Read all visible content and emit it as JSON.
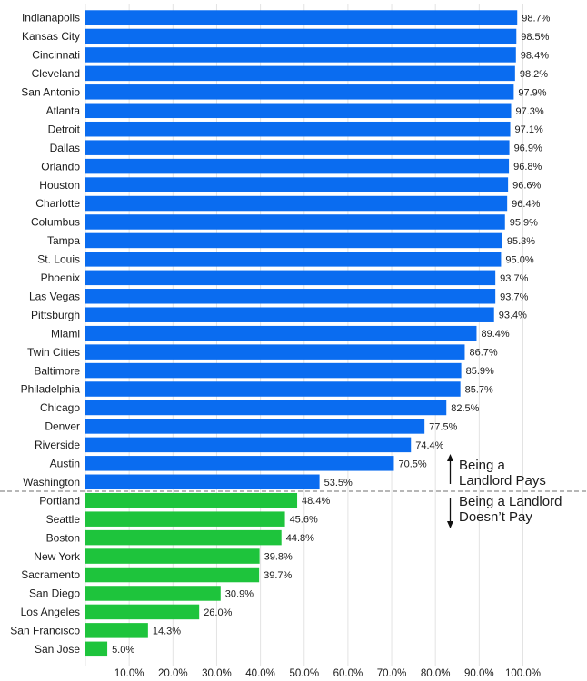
{
  "chart_data": {
    "type": "bar",
    "orientation": "horizontal",
    "categories": [
      "Indianapolis",
      "Kansas City",
      "Cincinnati",
      "Cleveland",
      "San Antonio",
      "Atlanta",
      "Detroit",
      "Dallas",
      "Orlando",
      "Houston",
      "Charlotte",
      "Columbus",
      "Tampa",
      "St. Louis",
      "Phoenix",
      "Las Vegas",
      "Pittsburgh",
      "Miami",
      "Twin Cities",
      "Baltimore",
      "Philadelphia",
      "Chicago",
      "Denver",
      "Riverside",
      "Austin",
      "Washington",
      "Portland",
      "Seattle",
      "Boston",
      "New York",
      "Sacramento",
      "San Diego",
      "Los Angeles",
      "San Francisco",
      "San Jose"
    ],
    "values": [
      98.7,
      98.5,
      98.4,
      98.2,
      97.9,
      97.3,
      97.1,
      96.9,
      96.8,
      96.6,
      96.4,
      95.9,
      95.3,
      95.0,
      93.7,
      93.7,
      93.4,
      89.4,
      86.7,
      85.9,
      85.7,
      82.5,
      77.5,
      74.4,
      70.5,
      53.5,
      48.4,
      45.6,
      44.8,
      39.8,
      39.7,
      30.9,
      26.0,
      14.3,
      5.0
    ],
    "value_labels": [
      "98.7%",
      "98.5%",
      "98.4%",
      "98.2%",
      "97.9%",
      "97.3%",
      "97.1%",
      "96.9%",
      "96.8%",
      "96.6%",
      "96.4%",
      "95.9%",
      "95.3%",
      "95.0%",
      "93.7%",
      "93.7%",
      "93.4%",
      "89.4%",
      "86.7%",
      "85.9%",
      "85.7%",
      "82.5%",
      "77.5%",
      "74.4%",
      "70.5%",
      "53.5%",
      "48.4%",
      "45.6%",
      "44.8%",
      "39.8%",
      "39.7%",
      "30.9%",
      "26.0%",
      "14.3%",
      "5.0%"
    ],
    "threshold": 50,
    "xlim": [
      0,
      100
    ],
    "xticks": [
      10,
      20,
      30,
      40,
      50,
      60,
      70,
      80,
      90,
      100
    ],
    "xtick_labels": [
      "10.0%",
      "20.0%",
      "30.0%",
      "40.0%",
      "50.0%",
      "60.0%",
      "70.0%",
      "80.0%",
      "90.0%",
      "100.0%"
    ],
    "grid": true,
    "colors": {
      "above": "#0a6cf0",
      "below": "#1ec43c",
      "grid": "#e3e3e3",
      "divider": "#8c8c8c",
      "text": "#1a1a1a"
    },
    "annotations": {
      "pays": [
        "Being a",
        "Landlord Pays"
      ],
      "not_pays": [
        "Being a Landlord",
        "Doesn’t Pay"
      ]
    }
  }
}
